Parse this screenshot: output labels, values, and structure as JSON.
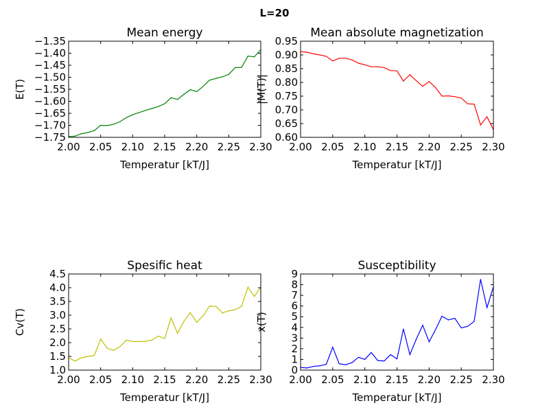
{
  "figure_title": "L=20",
  "chart_data": [
    {
      "type": "line",
      "title": "Mean energy",
      "xlabel": "Temperatur [kT/J]",
      "ylabel": "E(T)",
      "xlim": [
        2.0,
        2.3
      ],
      "ylim": [
        -1.75,
        -1.35
      ],
      "xticks": [
        2.0,
        2.05,
        2.1,
        2.15,
        2.2,
        2.25,
        2.3
      ],
      "xtick_labels": [
        "2.00",
        "2.05",
        "2.10",
        "2.15",
        "2.20",
        "2.25",
        "2.30"
      ],
      "yticks": [
        -1.75,
        -1.7,
        -1.65,
        -1.6,
        -1.55,
        -1.5,
        -1.45,
        -1.4,
        -1.35
      ],
      "ytick_labels": [
        "−1.75",
        "−1.70",
        "−1.65",
        "−1.60",
        "−1.55",
        "−1.50",
        "−1.45",
        "−1.40",
        "−1.35"
      ],
      "color": "#008000",
      "x": [
        2.0,
        2.01,
        2.02,
        2.03,
        2.04,
        2.05,
        2.06,
        2.07,
        2.08,
        2.09,
        2.1,
        2.11,
        2.12,
        2.13,
        2.14,
        2.15,
        2.16,
        2.17,
        2.18,
        2.19,
        2.2,
        2.21,
        2.22,
        2.23,
        2.24,
        2.25,
        2.26,
        2.27,
        2.28,
        2.29,
        2.3
      ],
      "y": [
        -1.747,
        -1.745,
        -1.735,
        -1.73,
        -1.722,
        -1.7,
        -1.701,
        -1.696,
        -1.685,
        -1.668,
        -1.656,
        -1.647,
        -1.638,
        -1.63,
        -1.622,
        -1.61,
        -1.585,
        -1.592,
        -1.571,
        -1.552,
        -1.56,
        -1.538,
        -1.512,
        -1.505,
        -1.498,
        -1.488,
        -1.46,
        -1.459,
        -1.412,
        -1.415,
        -1.385
      ]
    },
    {
      "type": "line",
      "title": "Mean absolute magnetization",
      "xlabel": "Temperatur [kT/J]",
      "ylabel": "|M(T)|",
      "xlim": [
        2.0,
        2.3
      ],
      "ylim": [
        0.6,
        0.95
      ],
      "xticks": [
        2.0,
        2.05,
        2.1,
        2.15,
        2.2,
        2.25,
        2.3
      ],
      "xtick_labels": [
        "2.00",
        "2.05",
        "2.10",
        "2.15",
        "2.20",
        "2.25",
        "2.30"
      ],
      "yticks": [
        0.6,
        0.65,
        0.7,
        0.75,
        0.8,
        0.85,
        0.9,
        0.95
      ],
      "ytick_labels": [
        "0.60",
        "0.65",
        "0.70",
        "0.75",
        "0.80",
        "0.85",
        "0.90",
        "0.95"
      ],
      "color": "#ff0000",
      "x": [
        2.0,
        2.01,
        2.02,
        2.03,
        2.04,
        2.05,
        2.06,
        2.07,
        2.08,
        2.09,
        2.1,
        2.11,
        2.12,
        2.13,
        2.14,
        2.15,
        2.16,
        2.17,
        2.18,
        2.19,
        2.2,
        2.21,
        2.22,
        2.23,
        2.24,
        2.25,
        2.26,
        2.27,
        2.28,
        2.29,
        2.3
      ],
      "y": [
        0.912,
        0.91,
        0.904,
        0.9,
        0.895,
        0.878,
        0.888,
        0.888,
        0.882,
        0.87,
        0.864,
        0.857,
        0.857,
        0.854,
        0.843,
        0.842,
        0.805,
        0.828,
        0.806,
        0.786,
        0.803,
        0.781,
        0.75,
        0.751,
        0.748,
        0.743,
        0.722,
        0.721,
        0.645,
        0.675,
        0.628
      ]
    },
    {
      "type": "line",
      "title": "Spesific heat",
      "xlabel": "Temperatur [kT/J]",
      "ylabel": "Cv(T)",
      "xlim": [
        2.0,
        2.3
      ],
      "ylim": [
        1.0,
        4.5
      ],
      "xticks": [
        2.0,
        2.05,
        2.1,
        2.15,
        2.2,
        2.25,
        2.3
      ],
      "xtick_labels": [
        "2.00",
        "2.05",
        "2.10",
        "2.15",
        "2.20",
        "2.25",
        "2.30"
      ],
      "yticks": [
        1.0,
        1.5,
        2.0,
        2.5,
        3.0,
        3.5,
        4.0,
        4.5
      ],
      "ytick_labels": [
        "1.0",
        "1.5",
        "2.0",
        "2.5",
        "3.0",
        "3.5",
        "4.0",
        "4.5"
      ],
      "color": "#bfbf00",
      "x": [
        2.0,
        2.01,
        2.02,
        2.03,
        2.04,
        2.05,
        2.06,
        2.07,
        2.08,
        2.09,
        2.1,
        2.11,
        2.12,
        2.13,
        2.14,
        2.15,
        2.16,
        2.17,
        2.18,
        2.19,
        2.2,
        2.21,
        2.22,
        2.23,
        2.24,
        2.25,
        2.26,
        2.27,
        2.28,
        2.29,
        2.3
      ],
      "y": [
        1.45,
        1.33,
        1.45,
        1.5,
        1.53,
        2.13,
        1.8,
        1.72,
        1.85,
        2.09,
        2.04,
        2.04,
        2.05,
        2.09,
        2.24,
        2.15,
        2.9,
        2.34,
        2.78,
        3.09,
        2.74,
        2.98,
        3.33,
        3.32,
        3.08,
        3.16,
        3.2,
        3.32,
        4.02,
        3.68,
        4.02
      ]
    },
    {
      "type": "line",
      "title": "Susceptibility",
      "xlabel": "Temperatur [kT/J]",
      "ylabel": "x(T)",
      "xlim": [
        2.0,
        2.3
      ],
      "ylim": [
        0,
        9
      ],
      "xticks": [
        2.0,
        2.05,
        2.1,
        2.15,
        2.2,
        2.25,
        2.3
      ],
      "xtick_labels": [
        "2.00",
        "2.05",
        "2.10",
        "2.15",
        "2.20",
        "2.25",
        "2.30"
      ],
      "yticks": [
        0,
        1,
        2,
        3,
        4,
        5,
        6,
        7,
        8,
        9
      ],
      "ytick_labels": [
        "0",
        "1",
        "2",
        "3",
        "4",
        "5",
        "6",
        "7",
        "8",
        "9"
      ],
      "color": "#0000ff",
      "x": [
        2.0,
        2.01,
        2.02,
        2.03,
        2.04,
        2.05,
        2.06,
        2.07,
        2.08,
        2.09,
        2.1,
        2.11,
        2.12,
        2.13,
        2.14,
        2.15,
        2.16,
        2.17,
        2.18,
        2.19,
        2.2,
        2.21,
        2.22,
        2.23,
        2.24,
        2.25,
        2.26,
        2.27,
        2.28,
        2.29,
        2.3
      ],
      "y": [
        0.25,
        0.2,
        0.35,
        0.4,
        0.55,
        2.15,
        0.6,
        0.5,
        0.7,
        1.2,
        1.0,
        1.65,
        0.9,
        0.85,
        1.45,
        1.05,
        3.85,
        1.45,
        2.9,
        4.2,
        2.65,
        3.8,
        5.05,
        4.7,
        4.85,
        3.95,
        4.1,
        4.55,
        8.5,
        5.85,
        7.8
      ]
    }
  ]
}
